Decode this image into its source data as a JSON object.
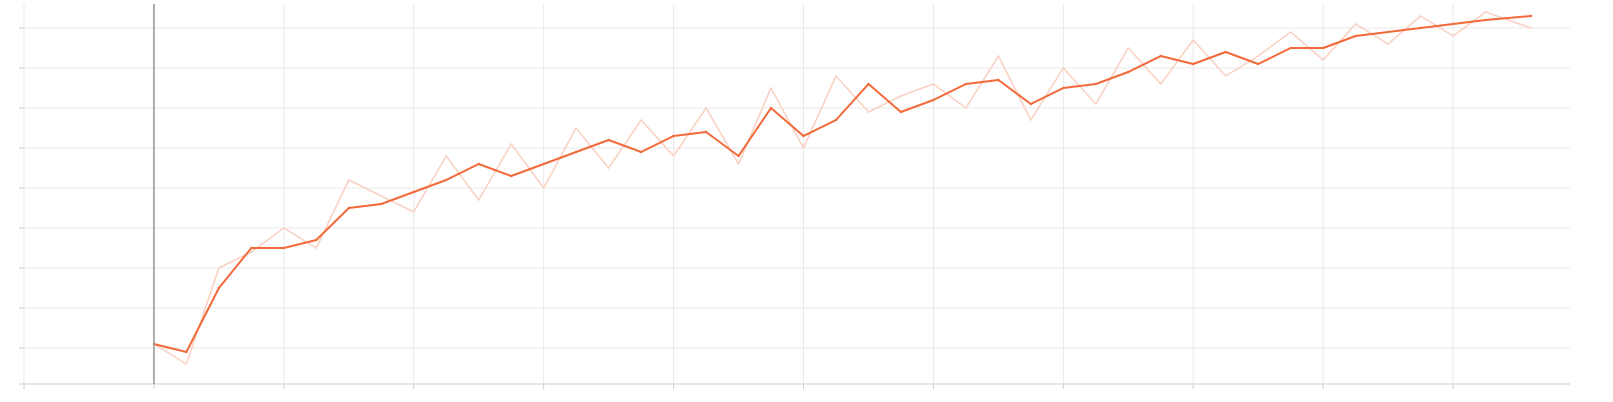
{
  "chart_data": {
    "type": "line",
    "title": "",
    "xlabel": "",
    "ylabel": "",
    "xlim": [
      -1,
      10.9
    ],
    "ylim": [
      -0.9,
      8.6
    ],
    "x_gridlines": [
      -1,
      0,
      1,
      2,
      3,
      4,
      5,
      6,
      7,
      8,
      9,
      10
    ],
    "y_gridlines": [
      -0.9,
      0,
      1,
      2,
      3,
      4,
      5,
      6,
      7,
      8
    ],
    "grid": true,
    "legend": "none",
    "colors": {
      "smoothed": "#f2693a",
      "raw": "#f9d2c4"
    },
    "series": [
      {
        "style": "smoothed",
        "x": [
          0.0,
          0.25,
          0.5,
          0.75,
          1.0,
          1.25,
          1.5,
          1.75,
          2.0,
          2.25,
          2.5,
          2.75,
          3.0,
          3.25,
          3.5,
          3.75,
          4.0,
          4.25,
          4.5,
          4.75,
          5.0,
          5.25,
          5.5,
          5.75,
          6.0,
          6.25,
          6.5,
          6.75,
          7.0,
          7.25,
          7.5,
          7.75,
          8.0,
          8.25,
          8.5,
          8.75,
          9.0,
          9.25,
          9.5,
          9.75,
          10.0,
          10.25,
          10.6
        ],
        "values": [
          0.1,
          -0.1,
          1.5,
          2.5,
          2.5,
          2.7,
          3.5,
          3.6,
          3.9,
          4.2,
          4.6,
          4.3,
          4.6,
          4.9,
          5.2,
          4.9,
          5.3,
          5.4,
          4.8,
          6.0,
          5.3,
          5.7,
          6.6,
          5.9,
          6.2,
          6.6,
          6.7,
          6.1,
          6.5,
          6.6,
          6.9,
          7.3,
          7.1,
          7.4,
          7.1,
          7.5,
          7.5,
          7.8,
          7.9,
          8.0,
          8.1,
          8.2,
          8.3
        ]
      },
      {
        "style": "raw",
        "x": [
          0.0,
          0.25,
          0.5,
          0.75,
          1.0,
          1.25,
          1.5,
          1.75,
          2.0,
          2.25,
          2.5,
          2.75,
          3.0,
          3.25,
          3.5,
          3.75,
          4.0,
          4.25,
          4.5,
          4.75,
          5.0,
          5.25,
          5.5,
          5.75,
          6.0,
          6.25,
          6.5,
          6.75,
          7.0,
          7.25,
          7.5,
          7.75,
          8.0,
          8.25,
          8.5,
          8.75,
          9.0,
          9.25,
          9.5,
          9.75,
          10.0,
          10.25,
          10.6
        ],
        "values": [
          0.1,
          -0.4,
          2.0,
          2.4,
          3.0,
          2.5,
          4.2,
          3.8,
          3.4,
          4.8,
          3.7,
          5.1,
          4.0,
          5.5,
          4.5,
          5.7,
          4.8,
          6.0,
          4.6,
          6.5,
          5.0,
          6.8,
          5.9,
          6.3,
          6.6,
          6.0,
          7.3,
          5.7,
          7.0,
          6.1,
          7.5,
          6.6,
          7.7,
          6.8,
          7.3,
          7.9,
          7.2,
          8.1,
          7.6,
          8.3,
          7.8,
          8.4,
          8.0
        ]
      }
    ]
  }
}
